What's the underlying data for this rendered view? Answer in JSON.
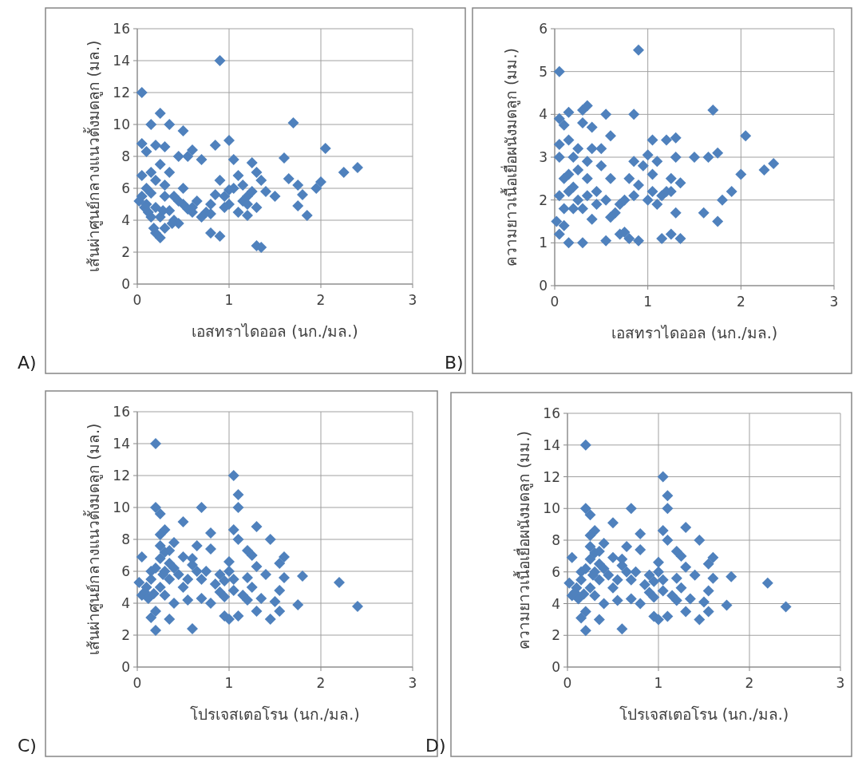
{
  "chart_data": [
    {
      "type": "scatter",
      "xlabel": "เอสทราไดออล (นก./มล.)",
      "ylabel": "เส้นผ่าศูนย์กลางแนวตั้งมดลูก (มล.)",
      "xlim": [
        0,
        3
      ],
      "xticks": [
        0,
        1,
        2,
        3
      ],
      "ylim": [
        0,
        16
      ],
      "yticks": [
        0,
        2,
        4,
        6,
        8,
        10,
        12,
        14,
        16
      ],
      "grid": true,
      "marker": "diamond",
      "annotations": [
        "A)"
      ],
      "series": [
        {
          "color": "#4f81bd",
          "x": [
            0.05,
            0.9,
            0.15,
            0.25,
            0.35,
            0.5,
            0.05,
            0.1,
            0.2,
            0.3,
            0.45,
            0.6,
            0.7,
            0.85,
            1.0,
            1.7,
            2.05,
            2.25,
            2.4,
            1.6,
            1.65,
            1.75,
            1.95,
            2.0,
            1.8,
            1.85,
            1.75,
            1.3,
            1.35,
            0.8,
            0.9,
            0.2,
            0.25,
            0.3,
            0.15,
            0.1,
            0.05,
            0.02,
            0.1,
            0.15,
            0.2,
            0.25,
            0.3,
            0.35,
            0.4,
            0.45,
            0.5,
            0.55,
            0.6,
            0.65,
            0.7,
            0.75,
            0.8,
            0.85,
            0.9,
            0.95,
            1.0,
            1.05,
            1.1,
            1.15,
            1.2,
            1.25,
            1.3,
            1.35,
            1.4,
            1.5,
            1.1,
            1.2,
            1.05,
            0.4,
            0.3,
            0.2,
            0.12,
            0.35,
            0.5,
            0.15,
            0.25,
            0.45,
            1.25,
            1.15,
            0.95,
            1.3,
            0.55,
            0.05,
            0.18,
            0.6,
            0.8,
            1.0,
            1.2,
            0.28,
            0.38,
            0.08
          ],
          "values": [
            12,
            14,
            10,
            10.7,
            10,
            9.6,
            8.8,
            8.3,
            8.7,
            8.6,
            8,
            8.4,
            7.8,
            8.7,
            9,
            10.1,
            8.5,
            7,
            7.3,
            7.9,
            6.6,
            6.2,
            6,
            6.4,
            5.6,
            4.3,
            4.9,
            2.4,
            2.3,
            3.2,
            3,
            3.2,
            2.9,
            3.5,
            4.2,
            5,
            5.5,
            5.2,
            6,
            7,
            6.5,
            7.5,
            5.5,
            4.6,
            4,
            3.8,
            5,
            4.7,
            4.5,
            5.2,
            4.2,
            4.5,
            5,
            5.6,
            6.5,
            5.5,
            5,
            6,
            6.8,
            6.2,
            5.5,
            7.6,
            7,
            6.5,
            5.8,
            5.5,
            4.5,
            4.3,
            7.8,
            5.5,
            6.2,
            4.8,
            4.5,
            7,
            6,
            5.7,
            4.2,
            5.2,
            5.8,
            5.2,
            4.8,
            4.8,
            8,
            6.8,
            3.5,
            4.8,
            4.4,
            5.9,
            5,
            4.6,
            3.8,
            4.8
          ]
        }
      ]
    },
    {
      "type": "scatter",
      "xlabel": "เอสทราไดออล (นก./มล.)",
      "ylabel": "ความยาวเนื้อเยื่อผนังมดลูก (มม.)",
      "xlim": [
        0,
        3
      ],
      "xticks": [
        0,
        1,
        2,
        3
      ],
      "ylim": [
        0,
        6
      ],
      "yticks": [
        0,
        1,
        2,
        3,
        4,
        5,
        6
      ],
      "grid": true,
      "marker": "diamond",
      "annotations": [
        "B)"
      ],
      "series": [
        {
          "color": "#4f81bd",
          "x": [
            0.05,
            0.9,
            0.05,
            0.15,
            0.3,
            0.35,
            0.55,
            0.85,
            1.7,
            0.1,
            0.3,
            0.4,
            0.6,
            0.15,
            0.25,
            0.4,
            0.5,
            0.05,
            1.05,
            1.2,
            1.3,
            2.05,
            0.05,
            0.2,
            0.35,
            0.85,
            0.95,
            1.1,
            1.3,
            1.5,
            1.65,
            1.75,
            2.25,
            2.35,
            0.15,
            0.35,
            0.6,
            0.8,
            1.05,
            1.25,
            1.35,
            2.0,
            1.9,
            1.8,
            1.6,
            1.75,
            0.05,
            0.15,
            0.25,
            0.35,
            0.45,
            0.55,
            0.7,
            0.85,
            1.0,
            1.15,
            1.25,
            1.3,
            0.02,
            0.05,
            0.15,
            0.1,
            0.3,
            0.55,
            0.7,
            0.75,
            0.8,
            0.9,
            1.15,
            1.25,
            1.35,
            0.2,
            0.4,
            0.65,
            0.9,
            1.1,
            1.2,
            0.1,
            0.25,
            0.5,
            0.3,
            0.6,
            1.0,
            0.2,
            0.1,
            0.45,
            0.75,
            1.05
          ],
          "values": [
            5,
            5.5,
            3.9,
            4.05,
            4.1,
            4.2,
            4,
            4,
            4.1,
            3.75,
            3.8,
            3.7,
            3.5,
            3.4,
            3.2,
            3.2,
            3.2,
            3.3,
            3.4,
            3.4,
            3.45,
            3.5,
            3,
            3,
            2.9,
            2.9,
            2.8,
            2.9,
            3,
            3,
            3,
            3.1,
            2.7,
            2.85,
            2.6,
            2.5,
            2.5,
            2.5,
            2.6,
            2.5,
            2.4,
            2.6,
            2.2,
            2,
            1.7,
            1.5,
            2.1,
            2.2,
            2,
            2.1,
            1.9,
            2,
            1.9,
            2.1,
            2,
            2.1,
            2.2,
            1.7,
            1.5,
            1.2,
            1,
            1.4,
            1,
            1.05,
            1.2,
            1.25,
            1.1,
            1.05,
            1.1,
            1.2,
            1.1,
            1.8,
            1.55,
            1.7,
            2.35,
            1.9,
            2.2,
            2.5,
            2.7,
            2.8,
            1.8,
            1.6,
            3.05,
            2.3,
            1.8,
            2.2,
            2,
            2.2
          ]
        }
      ]
    },
    {
      "type": "scatter",
      "xlabel": "โปรเจสเตอโรน (นก./มล.)",
      "ylabel": "เส้นผ่าศูนย์กลางแนวตั้งมดลูก (มล.)",
      "xlim": [
        0,
        3
      ],
      "xticks": [
        0,
        1,
        2,
        3
      ],
      "ylim": [
        0,
        16
      ],
      "yticks": [
        0,
        2,
        4,
        6,
        8,
        10,
        12,
        14,
        16
      ],
      "grid": true,
      "marker": "diamond",
      "annotations": [
        "C)"
      ],
      "series": [
        {
          "color": "#4f81bd",
          "x": [
            0.2,
            1.05,
            1.1,
            0.2,
            0.25,
            0.7,
            1.1,
            0.5,
            0.3,
            0.25,
            0.8,
            1.05,
            1.3,
            1.1,
            0.25,
            0.3,
            0.65,
            0.8,
            1.45,
            1.2,
            1.25,
            1.6,
            1.55,
            0.05,
            0.15,
            0.35,
            0.5,
            0.6,
            0.75,
            1.0,
            0.95,
            0.9,
            1.2,
            1.4,
            1.6,
            1.8,
            2.2,
            2.4,
            1.75,
            1.55,
            1.5,
            1.55,
            1.3,
            1.45,
            1.0,
            0.95,
            1.1,
            0.55,
            0.7,
            0.8,
            0.4,
            0.2,
            0.35,
            0.15,
            0.2,
            0.6,
            0.05,
            0.1,
            0.15,
            0.25,
            0.3,
            0.35,
            0.45,
            0.5,
            0.25,
            0.3,
            0.35,
            0.55,
            0.6,
            0.7,
            0.85,
            0.9,
            1.05,
            1.15,
            1.2,
            1.25,
            1.35,
            1.05,
            0.02,
            0.08,
            0.12,
            0.2,
            0.4,
            0.28,
            0.18,
            0.65,
            1.0,
            1.3,
            0.95,
            0.4
          ],
          "values": [
            14,
            12,
            10.8,
            10,
            9.6,
            10,
            10,
            9.1,
            8.6,
            8.3,
            8.4,
            8.6,
            8.8,
            8,
            7.6,
            7.2,
            7.6,
            7.4,
            8,
            7.3,
            7,
            6.9,
            6.5,
            6.9,
            6,
            6.5,
            6.9,
            6.4,
            6,
            6,
            5.4,
            4.7,
            5.6,
            5.8,
            5.6,
            5.7,
            5.3,
            3.8,
            3.9,
            4.8,
            4.1,
            3.5,
            3.5,
            3,
            3,
            3.2,
            3.2,
            4.2,
            4.3,
            4,
            4,
            3.5,
            3,
            3.1,
            2.3,
            2.4,
            4.5,
            5,
            5.5,
            5,
            4.5,
            5.5,
            5.8,
            5,
            6.8,
            6,
            7.3,
            5.5,
            6.8,
            5.5,
            5.2,
            5.8,
            5.5,
            4.5,
            4.2,
            5,
            4.3,
            4.8,
            5.3,
            4.7,
            4.3,
            6.2,
            6.2,
            5.8,
            4.6,
            6,
            6.6,
            6.3,
            4.4,
            7.8
          ]
        }
      ]
    },
    {
      "type": "scatter",
      "xlabel": "โปรเจสเตอโรน (นก./มล.)",
      "ylabel": "ความยาวเนื้อเยื่อผนังมดลูก (มม.)",
      "xlim": [
        0,
        3
      ],
      "xticks": [
        0,
        1,
        2,
        3
      ],
      "ylim": [
        0,
        16
      ],
      "yticks": [
        0,
        2,
        4,
        6,
        8,
        10,
        12,
        14,
        16
      ],
      "grid": true,
      "marker": "diamond",
      "annotations": [
        "D)"
      ],
      "series": [
        {
          "color": "#4f81bd",
          "x": [
            0.2,
            1.05,
            1.1,
            0.2,
            0.25,
            0.7,
            1.1,
            0.5,
            0.3,
            0.25,
            0.8,
            1.05,
            1.3,
            1.1,
            0.25,
            0.3,
            0.65,
            0.8,
            1.45,
            1.2,
            1.25,
            1.6,
            1.55,
            0.05,
            0.15,
            0.35,
            0.5,
            0.6,
            0.75,
            1.0,
            0.95,
            0.9,
            1.2,
            1.4,
            1.6,
            1.8,
            2.2,
            2.4,
            1.75,
            1.55,
            1.5,
            1.55,
            1.3,
            1.45,
            1.0,
            0.95,
            1.1,
            0.55,
            0.7,
            0.8,
            0.4,
            0.2,
            0.35,
            0.15,
            0.2,
            0.6,
            0.05,
            0.1,
            0.15,
            0.25,
            0.3,
            0.35,
            0.45,
            0.5,
            0.25,
            0.3,
            0.35,
            0.55,
            0.6,
            0.7,
            0.85,
            0.9,
            1.05,
            1.15,
            1.2,
            1.25,
            1.35,
            1.05,
            0.02,
            0.08,
            0.12,
            0.2,
            0.4,
            0.28,
            0.18,
            0.65,
            1.0,
            1.3,
            0.95,
            0.4
          ],
          "values": [
            14,
            12,
            10.8,
            10,
            9.6,
            10,
            10,
            9.1,
            8.6,
            8.3,
            8.4,
            8.6,
            8.8,
            8,
            7.6,
            7.2,
            7.6,
            7.4,
            8,
            7.3,
            7,
            6.9,
            6.5,
            6.9,
            6,
            6.5,
            6.9,
            6.4,
            6,
            6,
            5.4,
            4.7,
            5.6,
            5.8,
            5.6,
            5.7,
            5.3,
            3.8,
            3.9,
            4.8,
            4.1,
            3.5,
            3.5,
            3,
            3,
            3.2,
            3.2,
            4.2,
            4.3,
            4,
            4,
            3.5,
            3,
            3.1,
            2.3,
            2.4,
            4.5,
            5,
            5.5,
            5,
            4.5,
            5.5,
            5.8,
            5,
            6.8,
            6,
            7.3,
            5.5,
            6.8,
            5.5,
            5.2,
            5.8,
            5.5,
            4.5,
            4.2,
            5,
            4.3,
            4.8,
            5.3,
            4.7,
            4.3,
            6.2,
            6.2,
            5.8,
            4.6,
            6,
            6.6,
            6.3,
            4.4,
            7.8
          ]
        }
      ]
    }
  ]
}
